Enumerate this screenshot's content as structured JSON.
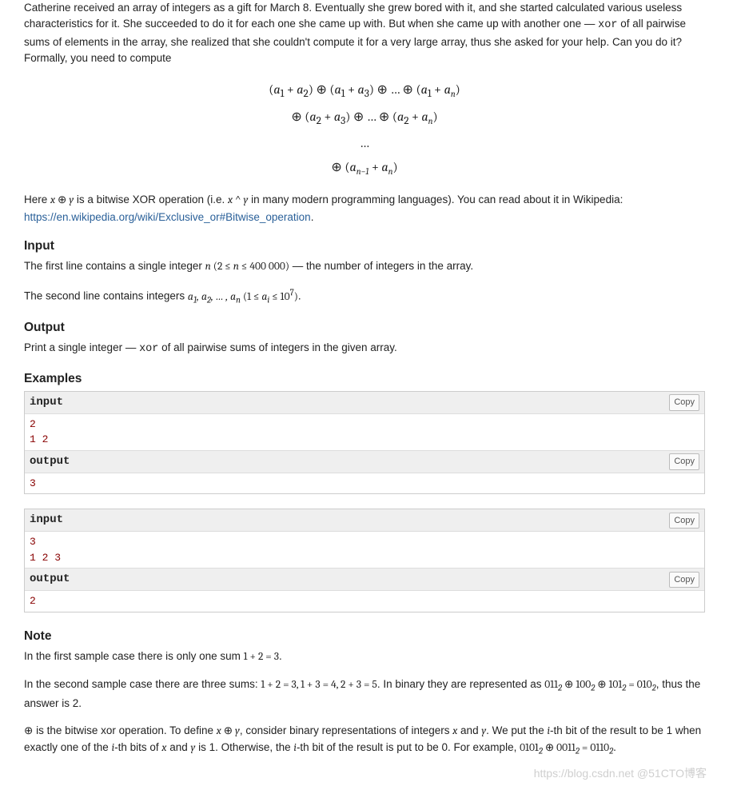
{
  "intro": {
    "p1_a": "Catherine received an array of integers as a gift for March 8. Eventually she grew bored with it, and she started calculated various useless characteristics for it. She succeeded to do it for each one she came up with. But when she came up with another one — ",
    "p1_code": "xor",
    "p1_b": " of all pairwise sums of elements in the array, she realized that she couldn't compute it for a very large array, thus she asked for your help. Can you do it?",
    "p2": "Formally, you need to compute"
  },
  "formula": {
    "line1": "(a₁ + a₂) ⊕ (a₁ + a₃) ⊕ … ⊕ (a₁ + aₙ)",
    "line2": "⊕ (a₂ + a₃) ⊕ … ⊕ (a₂ + aₙ)",
    "line3": "…",
    "line4": "⊕ (aₙ₋₁ + aₙ)"
  },
  "xor_desc": {
    "a": "Here ",
    "xy": "x ⊕ y",
    "b": " is a bitwise XOR operation (i.e. ",
    "caret": "x ^ y",
    "c": " in many modern programming languages). You can read about it in Wikipedia: ",
    "link": "https://en.wikipedia.org/wiki/Exclusive_or#Bitwise_operation",
    "d": "."
  },
  "input": {
    "title": "Input",
    "line1_a": "The first line contains a single integer ",
    "line1_m": "n (2 ≤ n ≤ 400 000)",
    "line1_b": " — the number of integers in the array.",
    "line2_a": "The second line contains integers ",
    "line2_m": "a₁, a₂, … , aₙ (1 ≤ aᵢ ≤ 10⁷)",
    "line2_b": "."
  },
  "output": {
    "title": "Output",
    "line_a": "Print a single integer — ",
    "line_code": "xor",
    "line_b": " of all pairwise sums of integers in the given array."
  },
  "examples": {
    "title": "Examples",
    "hdr_input": "input",
    "hdr_output": "output",
    "copy": "Copy",
    "ex1_in": "2\n1 2",
    "ex1_out": "3",
    "ex2_in": "3\n1 2 3",
    "ex2_out": "2"
  },
  "note": {
    "title": "Note",
    "p1_a": "In the first sample case there is only one sum ",
    "p1_m": "1 + 2 = 3",
    "p1_b": ".",
    "p2_a": "In the second sample case there are three sums: ",
    "p2_m1": "1 + 2 = 3, 1 + 3 = 4, 2 + 3 = 5",
    "p2_b": ". In binary they are represented as ",
    "p2_m2": "011₂ ⊕ 100₂ ⊕ 101₂ = 010₂",
    "p2_c": ", thus the answer is 2.",
    "p3_a": "⊕ is the bitwise xor operation. To define ",
    "p3_m1": "x ⊕ y",
    "p3_b": ", consider binary representations of integers ",
    "p3_x": "x",
    "p3_and": " and ",
    "p3_y": "y",
    "p3_c": ". We put the ",
    "p3_i": "i",
    "p3_d": "-th bit of the result to be 1 when exactly one of the ",
    "p3_e": "-th bits of ",
    "p3_f": " is 1. Otherwise, the ",
    "p3_g": "-th bit of the result is put to be 0. For example, ",
    "p3_m2": "0101₂ ⊕ 0011₂ = 0110₂",
    "p3_h": "."
  },
  "watermark": "https://blog.csdn.net @51CTO博客"
}
